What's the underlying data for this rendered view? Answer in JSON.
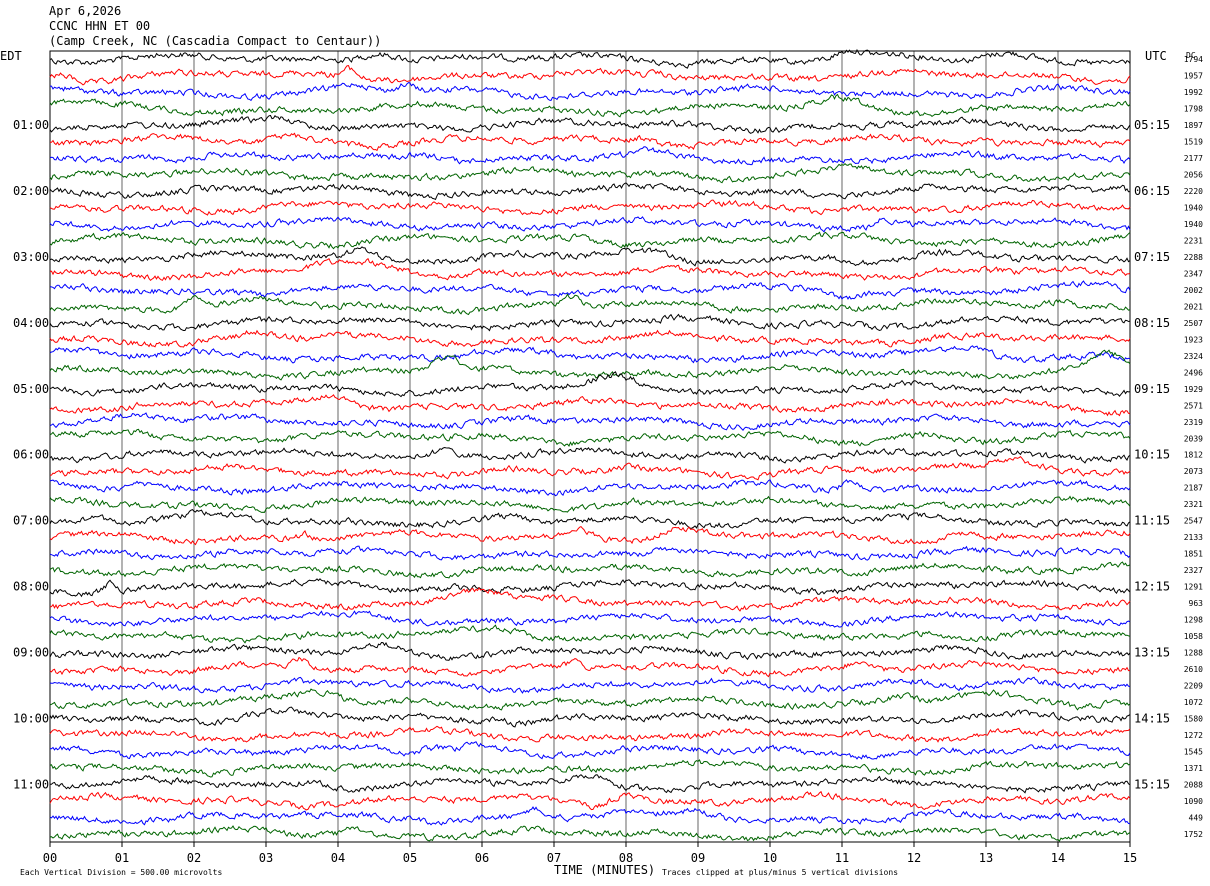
{
  "header": {
    "date": "Apr 6,2026",
    "station": "CCNC HHN ET 00",
    "location": "(Camp Creek, NC (Cascadia Compact to Centaur))"
  },
  "left_timezone": "EDT",
  "right_timezone": "UTC",
  "dc_label": "DC",
  "footer": {
    "scale": "Each Vertical Division =  500.00 microvolts",
    "clip": "Traces clipped at plus/minus 5 vertical divisions"
  },
  "colors": {
    "trace_cycle": [
      "#000000",
      "#ff0000",
      "#0000ff",
      "#006400"
    ],
    "grid": "#000000",
    "background": "#ffffff"
  },
  "chart_data": {
    "type": "line",
    "title": "",
    "xlabel": "TIME (MINUTES)",
    "ylabel": "",
    "xlim": [
      0,
      15
    ],
    "x_ticks": [
      "00",
      "01",
      "02",
      "03",
      "04",
      "05",
      "06",
      "07",
      "08",
      "09",
      "10",
      "11",
      "12",
      "13",
      "14",
      "15"
    ],
    "grid": true,
    "row_count": 48,
    "left_hour_labels": [
      "01:00",
      "02:00",
      "03:00",
      "04:00",
      "05:00",
      "06:00",
      "07:00",
      "08:00",
      "09:00",
      "10:00",
      "11:00"
    ],
    "right_hour_labels": [
      "05:15",
      "06:15",
      "07:15",
      "08:15",
      "09:15",
      "10:15",
      "11:15",
      "12:15",
      "13:15",
      "14:15",
      "15:15"
    ],
    "dc_offsets": [
      "1794",
      "1957",
      "1992",
      "1798",
      "1897",
      "1519",
      "2177",
      "2056",
      "2220",
      "1940",
      "1940",
      "2231",
      "2288",
      "2347",
      "2002",
      "2021",
      "2507",
      "1923",
      "2324",
      "2496",
      "1929",
      "2571",
      "2319",
      "2039",
      "1812",
      "2073",
      "2187",
      "2321",
      "2547",
      "2133",
      "1851",
      "2327",
      "1291",
      "963",
      "1298",
      "1058",
      "1288",
      "2610",
      "2209",
      "1072",
      "1580",
      "1272",
      "1545",
      "1371",
      "2088",
      "1090",
      "449",
      "1752"
    ]
  }
}
